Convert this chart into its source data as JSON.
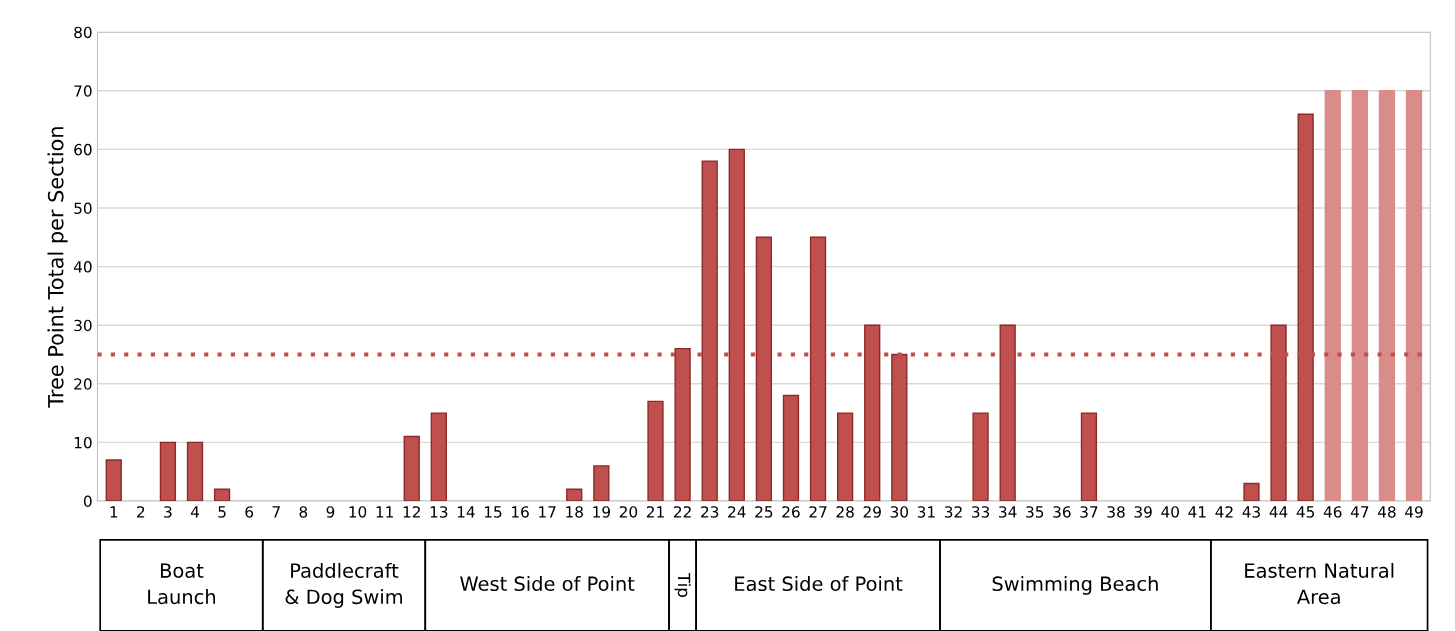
{
  "chart_data": {
    "type": "bar",
    "ylabel": "Tree Point Total per Section",
    "categories": [
      "1",
      "2",
      "3",
      "4",
      "5",
      "6",
      "7",
      "8",
      "9",
      "10",
      "11",
      "12",
      "13",
      "14",
      "15",
      "16",
      "17",
      "18",
      "19",
      "20",
      "21",
      "22",
      "23",
      "24",
      "25",
      "26",
      "27",
      "28",
      "29",
      "30",
      "31",
      "32",
      "33",
      "34",
      "35",
      "36",
      "37",
      "38",
      "39",
      "40",
      "41",
      "42",
      "43",
      "44",
      "45",
      "46",
      "47",
      "48",
      "49"
    ],
    "values": [
      7,
      0,
      10,
      10,
      2,
      0,
      0,
      0,
      0,
      0,
      0,
      11,
      15,
      0,
      0,
      0,
      0,
      2,
      6,
      0,
      17,
      26,
      58,
      60,
      45,
      18,
      45,
      15,
      30,
      25,
      0,
      0,
      15,
      30,
      0,
      0,
      15,
      0,
      0,
      0,
      0,
      0,
      3,
      30,
      66,
      70,
      70,
      70,
      70
    ],
    "colors": [
      "#c0504d",
      "#c0504d",
      "#c0504d",
      "#c0504d",
      "#c0504d",
      "#c0504d",
      "#c0504d",
      "#c0504d",
      "#c0504d",
      "#c0504d",
      "#c0504d",
      "#c0504d",
      "#c0504d",
      "#c0504d",
      "#c0504d",
      "#c0504d",
      "#c0504d",
      "#c0504d",
      "#c0504d",
      "#c0504d",
      "#c0504d",
      "#c0504d",
      "#c0504d",
      "#c0504d",
      "#c0504d",
      "#c0504d",
      "#c0504d",
      "#c0504d",
      "#c0504d",
      "#c0504d",
      "#c0504d",
      "#c0504d",
      "#c0504d",
      "#c0504d",
      "#c0504d",
      "#c0504d",
      "#c0504d",
      "#c0504d",
      "#c0504d",
      "#c0504d",
      "#c0504d",
      "#c0504d",
      "#c0504d",
      "#c0504d",
      "#c0504d",
      "#d98c8a",
      "#d98c8a",
      "#d98c8a",
      "#d98c8a"
    ],
    "ylim": [
      0,
      80
    ],
    "yticks": [
      0,
      10,
      20,
      30,
      40,
      50,
      60,
      70,
      80
    ],
    "grid": "y",
    "ref_lines": [
      {
        "axis": "y",
        "value": 25,
        "color": "#c0504d",
        "line_style": "dotted"
      }
    ],
    "annotations": [
      "Boat\nLaunch",
      "Paddlecraft\n& Dog Swim",
      "West Side of Point",
      "Tip",
      "East Side of Point",
      "Swimming Beach",
      "Eastern Natural\nArea"
    ]
  }
}
